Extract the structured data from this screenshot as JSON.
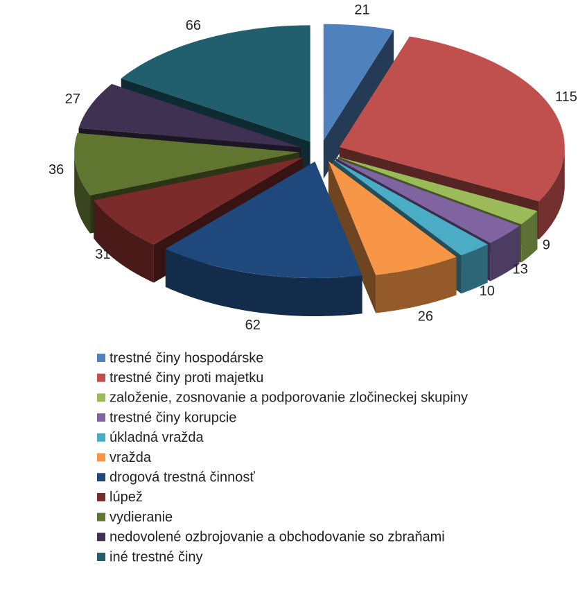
{
  "chart_data": {
    "type": "pie3d",
    "categories": [
      "trestné činy hospodárske",
      "trestné činy proti majetku",
      "založenie, zosnovanie a podporovanie zločineckej skupiny",
      "trestné činy korupcie",
      "úkladná vražda",
      "vražda",
      "drogová trestná činnosť",
      "lúpež",
      "vydieranie",
      "nedovolené ozbrojovanie a obchodovanie so zbraňami",
      "iné trestné činy"
    ],
    "values": [
      21,
      115,
      9,
      13,
      10,
      26,
      62,
      31,
      36,
      27,
      66
    ],
    "colors": [
      "#4f81bd",
      "#c0504d",
      "#9bbb59",
      "#8064a2",
      "#4bacc6",
      "#f79646",
      "#1f497d",
      "#7b2c2a",
      "#5f7530",
      "#3f3151",
      "#215f6e"
    ],
    "legend": "bottom"
  }
}
